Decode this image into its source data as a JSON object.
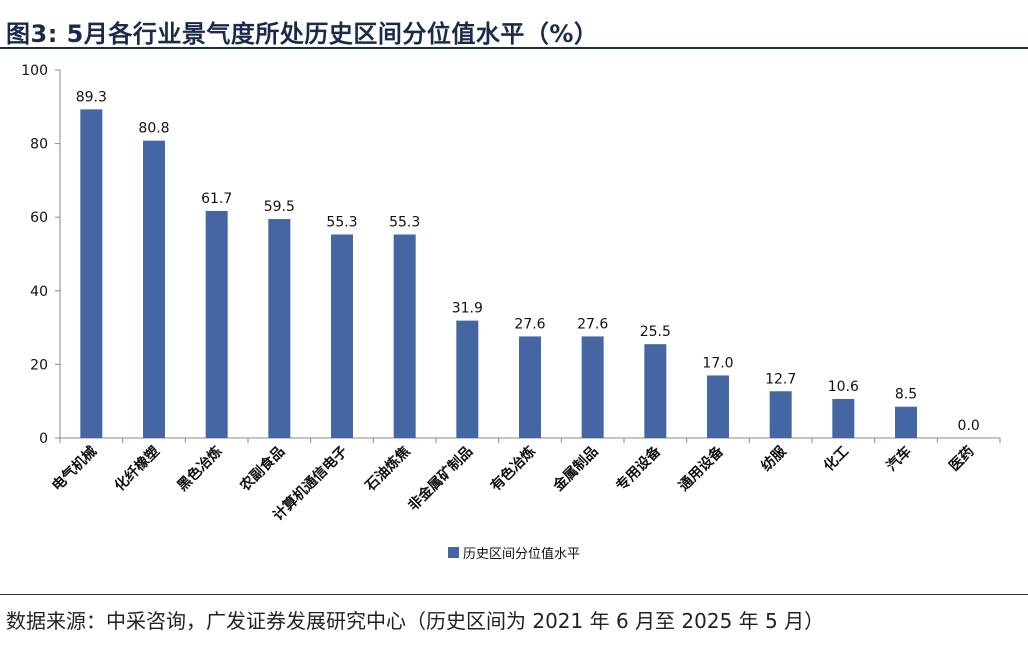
{
  "title": "图3:  5月各行业景气度所处历史区间分位值水平（%）",
  "source": "数据来源：中采咨询，广发证券发展研究中心（历史区间为 2021 年 6 月至 2025 年 5 月）",
  "colors": {
    "bar": "#4467a4",
    "axis": "#888888",
    "title": "#1a2a4a"
  },
  "chart_data": {
    "type": "bar",
    "title": "",
    "xlabel": "",
    "ylabel": "",
    "ylim": [
      0,
      100
    ],
    "yticks": [
      0,
      20,
      40,
      60,
      80,
      100
    ],
    "grid": false,
    "legend_position": "bottom",
    "categories": [
      "电气机械",
      "化纤橡塑",
      "黑色冶炼",
      "农副食品",
      "计算机通信电子",
      "石油炼焦",
      "非金属矿制品",
      "有色冶炼",
      "金属制品",
      "专用设备",
      "通用设备",
      "纺服",
      "化工",
      "汽车",
      "医药"
    ],
    "series": [
      {
        "name": "历史区间分位值水平",
        "values": [
          89.3,
          80.8,
          61.7,
          59.5,
          55.3,
          55.3,
          31.9,
          27.6,
          27.6,
          25.5,
          17.0,
          12.7,
          10.6,
          8.5,
          0.0
        ],
        "data_labels": [
          "89.3",
          "80.8",
          "61.7",
          "59.5",
          "55.3",
          "55.3",
          "31.9",
          "27.6",
          "27.6",
          "25.5",
          "17.0",
          "12.7",
          "10.6",
          "8.5",
          "0.0"
        ]
      }
    ]
  }
}
